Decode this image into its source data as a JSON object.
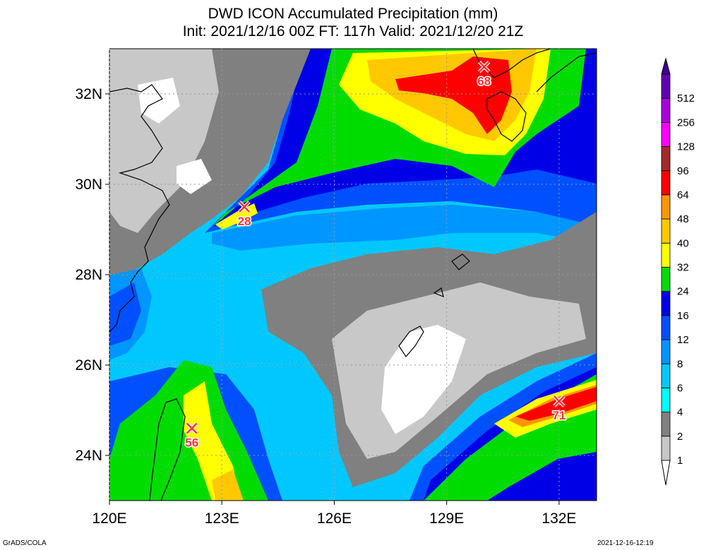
{
  "title": {
    "line1": "DWD ICON Accumulated Precipitation (mm)",
    "line2": "Init: 2021/12/16 00Z  FT: 117h  Valid: 2021/12/20 21Z"
  },
  "map": {
    "lon_range": [
      120,
      133
    ],
    "lat_range": [
      23,
      33
    ],
    "lon_ticks": [
      {
        "value": 120,
        "label": "120E"
      },
      {
        "value": 123,
        "label": "123E"
      },
      {
        "value": 126,
        "label": "126E"
      },
      {
        "value": 129,
        "label": "129E"
      },
      {
        "value": 132,
        "label": "132E"
      }
    ],
    "lat_ticks": [
      {
        "value": 24,
        "label": "24N"
      },
      {
        "value": 26,
        "label": "26N"
      },
      {
        "value": 28,
        "label": "28N"
      },
      {
        "value": 30,
        "label": "30N"
      },
      {
        "value": 32,
        "label": "32N"
      }
    ],
    "grid": true,
    "maxima": [
      {
        "lon": 130.0,
        "lat": 32.6,
        "label": "68"
      },
      {
        "lon": 123.6,
        "lat": 29.5,
        "label": "28"
      },
      {
        "lon": 122.2,
        "lat": 24.6,
        "label": "56"
      },
      {
        "lon": 132.0,
        "lat": 25.2,
        "label": "71"
      }
    ]
  },
  "colorbar": {
    "levels": [
      {
        "label": "1",
        "color": "#c8c8c8"
      },
      {
        "label": "2",
        "color": "#808080"
      },
      {
        "label": "4",
        "color": "#00ffff"
      },
      {
        "label": "6",
        "color": "#00c8ff"
      },
      {
        "label": "8",
        "color": "#0096ff"
      },
      {
        "label": "12",
        "color": "#0050ff"
      },
      {
        "label": "16",
        "color": "#0000e6"
      },
      {
        "label": "24",
        "color": "#00dc00"
      },
      {
        "label": "32",
        "color": "#ffff00"
      },
      {
        "label": "40",
        "color": "#ffc800"
      },
      {
        "label": "48",
        "color": "#ff9600"
      },
      {
        "label": "64",
        "color": "#ff0000"
      },
      {
        "label": "96",
        "color": "#a52a2a"
      },
      {
        "label": "128",
        "color": "#ff00ff"
      },
      {
        "label": "256",
        "color": "#aa00dc"
      },
      {
        "label": "512",
        "color": "#6400b4"
      }
    ],
    "top_arrow_color": "#3c0096"
  },
  "colors": {
    "white": "#ffffff",
    "light_gray": "#c8c8c8",
    "gray": "#808080",
    "cyan": "#00ffff",
    "sky": "#00c8ff",
    "blue": "#0096ff",
    "royal": "#0050ff",
    "navy": "#0000e6",
    "green": "#00dc00",
    "yellow": "#ffff00",
    "gold": "#ffc800",
    "orange": "#ff9600",
    "red": "#ff0000",
    "marker": "#ff3333"
  },
  "footer": {
    "left": "GrADS/COLA",
    "right": "2021-12-16-12:19"
  }
}
